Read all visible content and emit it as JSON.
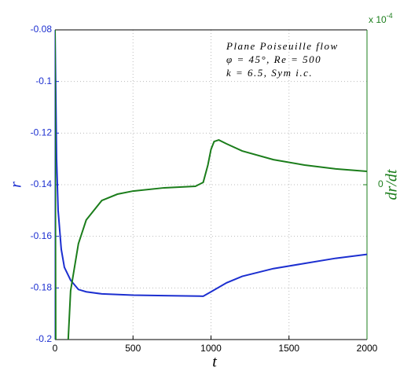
{
  "chart_data": {
    "type": "line",
    "annotation": [
      "Plane Poiseuille flow",
      "φ = 45°, Re = 500",
      "k = 6.5, Sym i.c."
    ],
    "xlabel": "t",
    "ylabel": "r",
    "y2label": "dr/dt",
    "y2_multiplier": {
      "base": "x 10",
      "exponent": "-4"
    },
    "xlim": [
      0,
      2000
    ],
    "xticks": [
      0,
      500,
      1000,
      1500,
      2000
    ],
    "ylim": [
      -0.2,
      -0.08
    ],
    "yticks": [
      -0.2,
      -0.18,
      -0.16,
      -0.14,
      -0.12,
      -0.1,
      -0.08
    ],
    "y2lim": [
      -1,
      1
    ],
    "y2ticks": [
      0
    ],
    "grid": true,
    "series": [
      {
        "color": "#1c2fd0",
        "axis": "y",
        "x": [
          0,
          10,
          20,
          40,
          60,
          100,
          150,
          200,
          300,
          500,
          700,
          950,
          1000,
          1100,
          1200,
          1400,
          1600,
          1800,
          2000
        ],
        "values": [
          -0.08,
          -0.13,
          -0.15,
          -0.165,
          -0.172,
          -0.177,
          -0.1806,
          -0.1815,
          -0.1823,
          -0.1828,
          -0.183,
          -0.1832,
          -0.1815,
          -0.178,
          -0.1755,
          -0.1725,
          -0.1705,
          -0.1685,
          -0.167
        ]
      },
      {
        "color": "#1b7d1b",
        "axis": "y2",
        "x": [
          0,
          5,
          75,
          100,
          150,
          200,
          300,
          400,
          500,
          700,
          900,
          950,
          980,
          1000,
          1020,
          1050,
          1100,
          1200,
          1400,
          1600,
          1800,
          2000
        ],
        "values": [
          1.0,
          -1.2,
          -1.2,
          -0.685,
          -0.381,
          -0.228,
          -0.102,
          -0.061,
          -0.041,
          -0.02,
          -0.01,
          0.015,
          0.127,
          0.228,
          0.279,
          0.289,
          0.264,
          0.218,
          0.162,
          0.127,
          0.102,
          0.086
        ]
      }
    ]
  }
}
